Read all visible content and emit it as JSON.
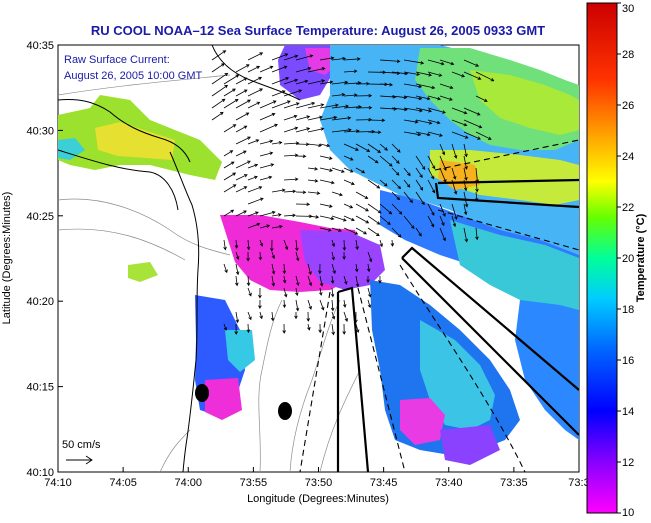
{
  "title": "RU COOL  NOAA–12  Sea Surface Temperature:  August 26, 2005 0933 GMT",
  "annotation": {
    "line1": "Raw Surface Current:",
    "line2": "August 26, 2005 10:00 GMT"
  },
  "scale_arrow_label": "50 cm/s",
  "x_axis": {
    "label": "Longitude (Degrees:Minutes)",
    "ticks": [
      "74:10",
      "74:05",
      "74:00",
      "73:55",
      "73:50",
      "73:45",
      "73:40",
      "73:35",
      "73:3"
    ]
  },
  "y_axis": {
    "label": "Latitude (Degrees:Minutes)",
    "ticks": [
      "40:35",
      "40:30",
      "40:25",
      "40:20",
      "40:15",
      "40:10"
    ]
  },
  "colorbar": {
    "label": "Temperature (°C)",
    "ticks": [
      "30",
      "28",
      "26",
      "24",
      "22",
      "20",
      "18",
      "16",
      "14",
      "12",
      "10"
    ],
    "min": 10,
    "max": 30
  },
  "colors": {
    "title": "#1a1aa8",
    "annotation": "#1a1aa8",
    "land": "#ffffff",
    "coastline": "#000000",
    "bathymetry": "#8c8c8c"
  }
}
